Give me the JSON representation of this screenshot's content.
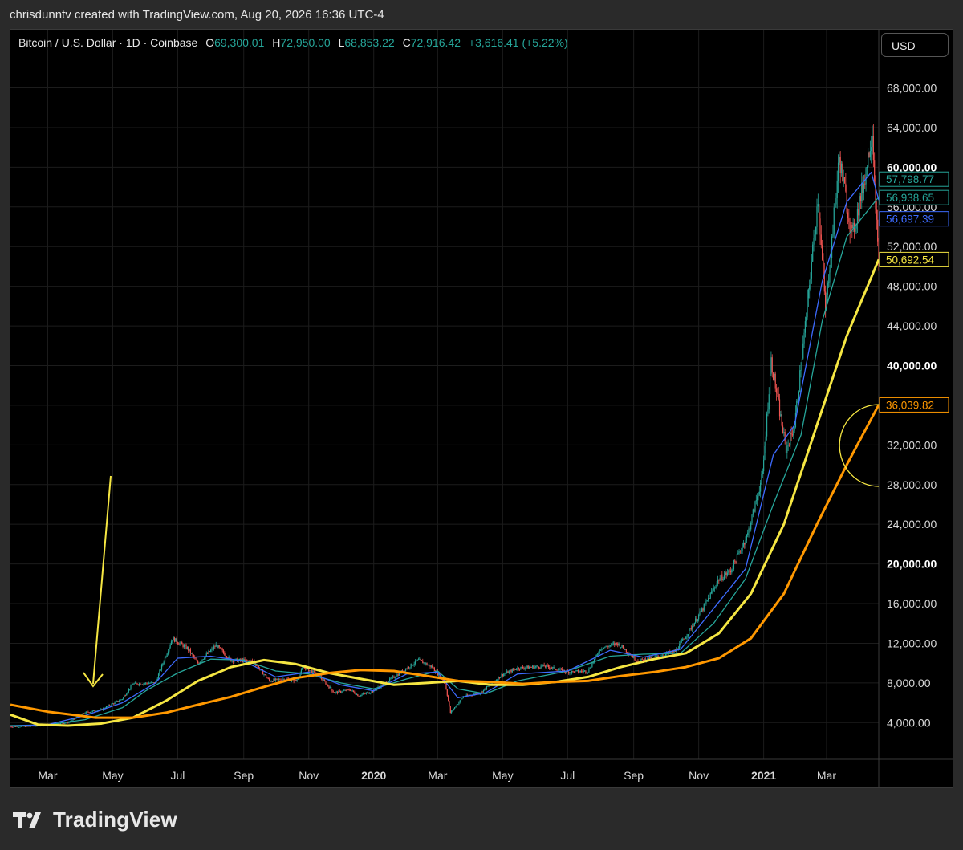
{
  "credit": "chrisdunntv created with TradingView.com, Aug 20, 2026 16:36 UTC-4",
  "legend": {
    "symbol": "Bitcoin / U.S. Dollar · 1D · Coinbase",
    "open_label": "O",
    "open": "69,300.01",
    "high_label": "H",
    "high": "72,950.00",
    "low_label": "L",
    "low": "68,853.22",
    "close_label": "C",
    "close": "72,916.42",
    "change": "+3,616.41 (+5.22%)"
  },
  "currency_button": "USD",
  "brand": "TradingView",
  "colors": {
    "up": "#26a69a",
    "down": "#ef5350",
    "ma_teal": "#26a69a",
    "ma_blue": "#3d6bff",
    "ma_yellow": "#f5e642",
    "ma_orange": "#ff9800",
    "annotation": "#f5e642"
  },
  "chart_data": {
    "type": "line",
    "y_scale": "linear",
    "ylim": [
      300,
      71200
    ],
    "y_ticks": [
      4000,
      8000,
      12000,
      16000,
      20000,
      24000,
      28000,
      32000,
      36000,
      40000,
      44000,
      48000,
      52000,
      56000,
      60000,
      64000,
      68000
    ],
    "y_tick_labels": [
      "4,000.00",
      "8,000.00",
      "12,000.00",
      "16,000.00",
      "20,000.00",
      "24,000.00",
      "28,000.00",
      "32,000.00",
      "36,000.00",
      "40,000.00",
      "44,000.00",
      "48,000.00",
      "52,000.00",
      "56,000.00",
      "60,000.00",
      "64,000.00",
      "68,000.00"
    ],
    "bold_ticks": [
      20000,
      40000,
      60000
    ],
    "xlim": [
      "2019-01-25",
      "2021-04-19"
    ],
    "x_ticks": [
      {
        "date": "2019-03-01",
        "label": "Mar"
      },
      {
        "date": "2019-05-01",
        "label": "May"
      },
      {
        "date": "2019-07-01",
        "label": "Jul"
      },
      {
        "date": "2019-09-01",
        "label": "Sep"
      },
      {
        "date": "2019-11-01",
        "label": "Nov"
      },
      {
        "date": "2020-01-01",
        "label": "2020",
        "bold": true
      },
      {
        "date": "2020-03-01",
        "label": "Mar"
      },
      {
        "date": "2020-05-01",
        "label": "May"
      },
      {
        "date": "2020-07-01",
        "label": "Jul"
      },
      {
        "date": "2020-09-01",
        "label": "Sep"
      },
      {
        "date": "2020-11-01",
        "label": "Nov"
      },
      {
        "date": "2021-01-01",
        "label": "2021",
        "bold": true
      },
      {
        "date": "2021-03-01",
        "label": "Mar"
      }
    ],
    "grid": true,
    "price_series": {
      "name": "",
      "points": [
        [
          "2019-01-25",
          3580
        ],
        [
          "2019-02-10",
          3620
        ],
        [
          "2019-03-01",
          3800
        ],
        [
          "2019-03-20",
          4000
        ],
        [
          "2019-04-05",
          5000
        ],
        [
          "2019-04-20",
          5300
        ],
        [
          "2019-05-10",
          6400
        ],
        [
          "2019-05-20",
          7900
        ],
        [
          "2019-06-10",
          8000
        ],
        [
          "2019-06-26",
          12500
        ],
        [
          "2019-07-10",
          11500
        ],
        [
          "2019-07-20",
          10000
        ],
        [
          "2019-08-06",
          11800
        ],
        [
          "2019-08-20",
          10300
        ],
        [
          "2019-09-10",
          10200
        ],
        [
          "2019-09-25",
          8200
        ],
        [
          "2019-10-10",
          8400
        ],
        [
          "2019-10-20",
          8200
        ],
        [
          "2019-10-27",
          9600
        ],
        [
          "2019-11-10",
          8800
        ],
        [
          "2019-11-25",
          7000
        ],
        [
          "2019-12-10",
          7300
        ],
        [
          "2019-12-18",
          6700
        ],
        [
          "2020-01-01",
          7200
        ],
        [
          "2020-01-20",
          8600
        ],
        [
          "2020-02-12",
          10300
        ],
        [
          "2020-02-25",
          9600
        ],
        [
          "2020-03-08",
          8000
        ],
        [
          "2020-03-13",
          5000
        ],
        [
          "2020-03-25",
          6600
        ],
        [
          "2020-04-10",
          7000
        ],
        [
          "2020-04-30",
          8800
        ],
        [
          "2020-05-15",
          9500
        ],
        [
          "2020-06-10",
          9700
        ],
        [
          "2020-07-01",
          9100
        ],
        [
          "2020-07-20",
          9200
        ],
        [
          "2020-08-01",
          11500
        ],
        [
          "2020-08-17",
          12000
        ],
        [
          "2020-09-05",
          10200
        ],
        [
          "2020-09-25",
          10700
        ],
        [
          "2020-10-10",
          11200
        ],
        [
          "2020-10-21",
          12900
        ],
        [
          "2020-11-05",
          15500
        ],
        [
          "2020-11-20",
          18500
        ],
        [
          "2020-12-01",
          19300
        ],
        [
          "2020-12-17",
          23000
        ],
        [
          "2020-12-31",
          29000
        ],
        [
          "2021-01-08",
          40500
        ],
        [
          "2021-01-15",
          36000
        ],
        [
          "2021-01-22",
          31500
        ],
        [
          "2021-01-30",
          34000
        ],
        [
          "2021-02-10",
          45000
        ],
        [
          "2021-02-21",
          57000
        ],
        [
          "2021-02-28",
          45500
        ],
        [
          "2021-03-13",
          61000
        ],
        [
          "2021-03-25",
          53000
        ],
        [
          "2021-04-05",
          58500
        ],
        [
          "2021-04-13",
          63800
        ],
        [
          "2021-04-19",
          49500
        ]
      ]
    },
    "series": [
      {
        "color": "#26a69a",
        "last_value": "57,798.77",
        "points": [
          [
            "2019-01-25",
            3700
          ],
          [
            "2019-03-01",
            3780
          ],
          [
            "2019-04-05",
            4300
          ],
          [
            "2019-05-10",
            5500
          ],
          [
            "2019-06-01",
            7200
          ],
          [
            "2019-07-01",
            9000
          ],
          [
            "2019-08-01",
            10400
          ],
          [
            "2019-09-01",
            10300
          ],
          [
            "2019-10-01",
            9200
          ],
          [
            "2019-11-01",
            8900
          ],
          [
            "2019-12-01",
            8000
          ],
          [
            "2020-01-01",
            7400
          ],
          [
            "2020-02-01",
            8400
          ],
          [
            "2020-03-01",
            9200
          ],
          [
            "2020-03-20",
            7400
          ],
          [
            "2020-04-15",
            6900
          ],
          [
            "2020-05-15",
            8200
          ],
          [
            "2020-07-01",
            9200
          ],
          [
            "2020-08-10",
            10700
          ],
          [
            "2020-09-10",
            10900
          ],
          [
            "2020-10-15",
            11000
          ],
          [
            "2020-11-15",
            14000
          ],
          [
            "2020-12-15",
            18500
          ],
          [
            "2021-01-10",
            26000
          ],
          [
            "2021-02-05",
            33000
          ],
          [
            "2021-02-25",
            44500
          ],
          [
            "2021-03-20",
            53000
          ],
          [
            "2021-04-19",
            57000
          ]
        ]
      },
      {
        "color": "#3d6bff",
        "last_value": "56,697.39",
        "points": [
          [
            "2019-01-25",
            3650
          ],
          [
            "2019-03-01",
            3800
          ],
          [
            "2019-04-05",
            4700
          ],
          [
            "2019-05-10",
            6000
          ],
          [
            "2019-06-10",
            8000
          ],
          [
            "2019-07-01",
            10500
          ],
          [
            "2019-08-01",
            10700
          ],
          [
            "2019-09-01",
            10200
          ],
          [
            "2019-10-01",
            8600
          ],
          [
            "2019-11-01",
            9100
          ],
          [
            "2019-12-01",
            7800
          ],
          [
            "2020-01-01",
            7200
          ],
          [
            "2020-02-01",
            8900
          ],
          [
            "2020-03-01",
            9100
          ],
          [
            "2020-03-20",
            6500
          ],
          [
            "2020-04-15",
            7000
          ],
          [
            "2020-05-15",
            8900
          ],
          [
            "2020-07-01",
            9200
          ],
          [
            "2020-08-10",
            11300
          ],
          [
            "2020-09-10",
            10600
          ],
          [
            "2020-10-15",
            11400
          ],
          [
            "2020-11-15",
            15500
          ],
          [
            "2020-12-15",
            19500
          ],
          [
            "2021-01-10",
            31000
          ],
          [
            "2021-01-30",
            34000
          ],
          [
            "2021-02-25",
            48500
          ],
          [
            "2021-03-20",
            56500
          ],
          [
            "2021-04-12",
            59500
          ],
          [
            "2021-04-19",
            56700
          ]
        ]
      },
      {
        "color": "#f5e642",
        "width": 3,
        "last_value": "50,692.54",
        "points": [
          [
            "2019-01-25",
            4800
          ],
          [
            "2019-02-20",
            3800
          ],
          [
            "2019-03-20",
            3700
          ],
          [
            "2019-04-20",
            3900
          ],
          [
            "2019-05-20",
            4500
          ],
          [
            "2019-06-20",
            6200
          ],
          [
            "2019-07-20",
            8200
          ],
          [
            "2019-08-20",
            9600
          ],
          [
            "2019-09-20",
            10300
          ],
          [
            "2019-10-20",
            9900
          ],
          [
            "2019-11-20",
            9000
          ],
          [
            "2019-12-20",
            8400
          ],
          [
            "2020-01-20",
            7800
          ],
          [
            "2020-02-20",
            8000
          ],
          [
            "2020-03-20",
            8200
          ],
          [
            "2020-04-20",
            7800
          ],
          [
            "2020-05-20",
            7800
          ],
          [
            "2020-06-20",
            8100
          ],
          [
            "2020-07-20",
            8600
          ],
          [
            "2020-08-20",
            9600
          ],
          [
            "2020-09-20",
            10400
          ],
          [
            "2020-10-20",
            11000
          ],
          [
            "2020-11-20",
            13000
          ],
          [
            "2020-12-20",
            17000
          ],
          [
            "2021-01-20",
            24000
          ],
          [
            "2021-02-20",
            34000
          ],
          [
            "2021-03-20",
            43000
          ],
          [
            "2021-04-19",
            50700
          ]
        ]
      },
      {
        "color": "#ff9800",
        "width": 3,
        "last_value": "36,039.82",
        "points": [
          [
            "2019-01-25",
            5800
          ],
          [
            "2019-03-01",
            5100
          ],
          [
            "2019-04-15",
            4500
          ],
          [
            "2019-05-20",
            4500
          ],
          [
            "2019-06-20",
            5000
          ],
          [
            "2019-07-20",
            5800
          ],
          [
            "2019-08-20",
            6600
          ],
          [
            "2019-09-20",
            7600
          ],
          [
            "2019-10-20",
            8500
          ],
          [
            "2019-11-20",
            9000
          ],
          [
            "2019-12-20",
            9300
          ],
          [
            "2020-01-20",
            9200
          ],
          [
            "2020-02-20",
            8700
          ],
          [
            "2020-03-20",
            8200
          ],
          [
            "2020-04-20",
            8100
          ],
          [
            "2020-05-20",
            7900
          ],
          [
            "2020-06-20",
            8100
          ],
          [
            "2020-07-20",
            8200
          ],
          [
            "2020-08-20",
            8700
          ],
          [
            "2020-09-20",
            9100
          ],
          [
            "2020-10-20",
            9600
          ],
          [
            "2020-11-20",
            10500
          ],
          [
            "2020-12-20",
            12500
          ],
          [
            "2021-01-20",
            17000
          ],
          [
            "2021-02-20",
            24000
          ],
          [
            "2021-03-20",
            30000
          ],
          [
            "2021-04-19",
            36040
          ]
        ]
      }
    ],
    "extra_price_labels": [
      {
        "value": "56,938.65",
        "color": "#26a69a",
        "level": 56940
      }
    ]
  }
}
